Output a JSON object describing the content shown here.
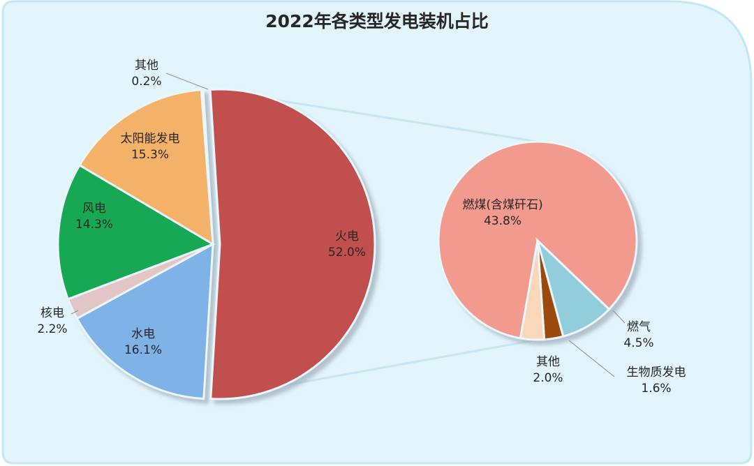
{
  "chart_data": [
    {
      "type": "pie",
      "title": "2022年各类型发电装机占比",
      "categories": [
        "火电",
        "水电",
        "核电",
        "风电",
        "太阳能发电",
        "其他"
      ],
      "values": [
        52.0,
        16.1,
        2.2,
        14.3,
        15.3,
        0.2
      ],
      "value_labels": [
        "52.0%",
        "16.1%",
        "2.2%",
        "14.3%",
        "15.3%",
        "0.2%"
      ],
      "colors": [
        "#c0504d",
        "#7fb2e6",
        "#e2c6c6",
        "#14a852",
        "#f4b267",
        "#d8cfe2"
      ]
    },
    {
      "type": "pie",
      "categories": [
        "燃煤(含煤矸石)",
        "燃气",
        "生物质发电",
        "其他"
      ],
      "values": [
        43.8,
        4.5,
        1.6,
        2.0
      ],
      "value_labels": [
        "43.8%",
        "4.5%",
        "1.6%",
        "2.0%"
      ],
      "colors": [
        "#f39a8e",
        "#92cddc",
        "#9c4a10",
        "#fad7b8"
      ]
    }
  ]
}
